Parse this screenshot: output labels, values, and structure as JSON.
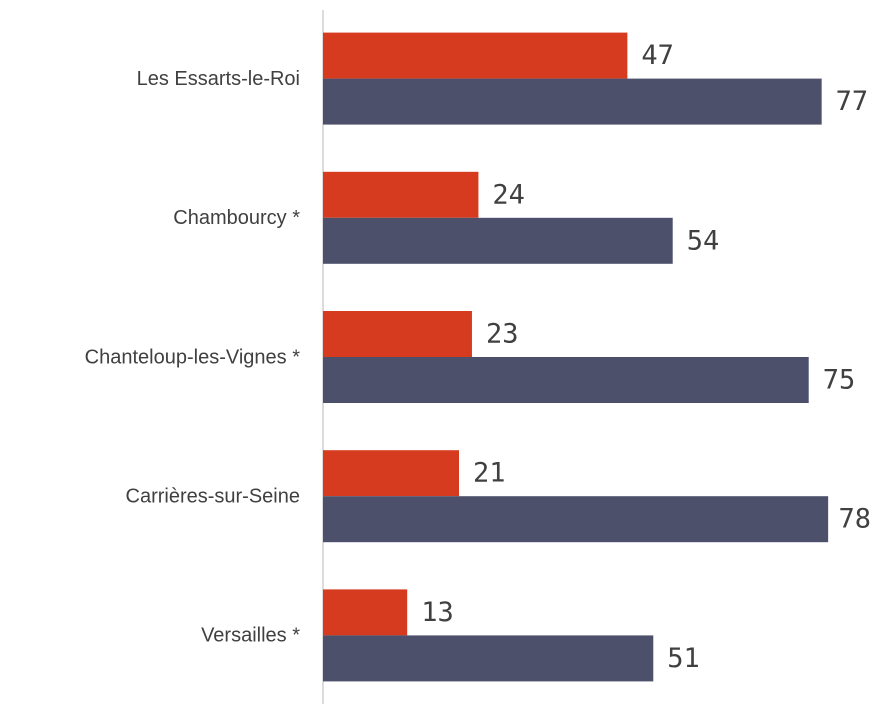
{
  "chart_data": {
    "type": "bar",
    "orientation": "horizontal",
    "categories": [
      "Les Essarts-le-Roi",
      "Chambourcy *",
      "Chanteloup-les-Vignes *",
      "Carrières-sur-Seine",
      "Versailles *"
    ],
    "series": [
      {
        "color": "#d63a1f",
        "values": [
          47,
          24,
          23,
          21,
          13
        ]
      },
      {
        "color": "#4d506b",
        "values": [
          77,
          54,
          75,
          78,
          51
        ]
      }
    ],
    "xlim": [
      0,
      84
    ]
  }
}
